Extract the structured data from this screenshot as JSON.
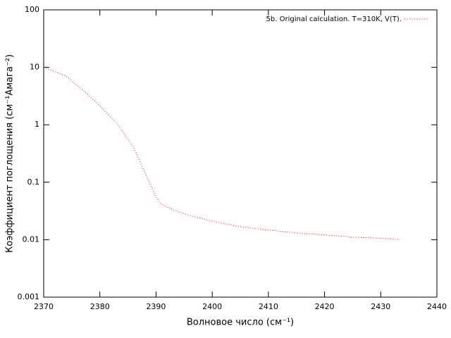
{
  "chart_data": {
    "type": "line",
    "xlabel": "Волновое число (см⁻¹)",
    "ylabel": "Коэффициент поглощения (см⁻¹Амага⁻²)",
    "x": [
      2370,
      2374,
      2377,
      2380,
      2383,
      2386,
      2388,
      2390,
      2391,
      2393,
      2396,
      2400,
      2405,
      2410,
      2415,
      2420,
      2425,
      2430,
      2433.5
    ],
    "series": [
      {
        "name": "5b. Original calculation. T=310K, V(T).",
        "color": "#ff0000",
        "values": [
          10,
          7.0,
          4.0,
          2.15,
          1.06,
          0.4,
          0.15,
          0.055,
          0.041,
          0.033,
          0.0264,
          0.021,
          0.0168,
          0.0147,
          0.0131,
          0.0121,
          0.0111,
          0.0106,
          0.01
        ]
      }
    ],
    "xlim": [
      2370,
      2440
    ],
    "xticks": [
      2370,
      2380,
      2390,
      2400,
      2410,
      2420,
      2430,
      2440
    ],
    "ylim": [
      0.001,
      100
    ],
    "yticks": [
      0.001,
      0.01,
      0.1,
      1,
      10,
      100
    ],
    "log_y": true,
    "legend": "top-right"
  }
}
